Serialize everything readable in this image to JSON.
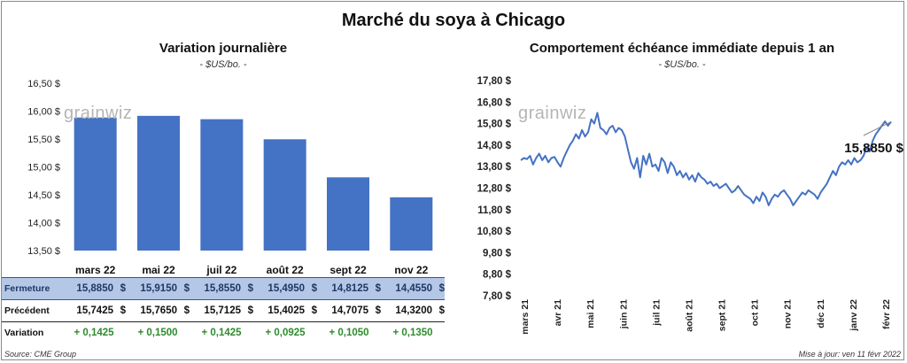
{
  "title": "Marché du soya à Chicago",
  "watermark": "grainwiz",
  "left_chart": {
    "subtitle": "Variation  journalière",
    "unit": "- $US/bo. -"
  },
  "right_chart": {
    "subtitle": "Comportement  échéance immédiate depuis 1 an",
    "unit": "- $US/bo. -",
    "last_value_label": "15,8850 $"
  },
  "table": {
    "rows": [
      {
        "label": "Fermeture",
        "values": [
          "15,8850",
          "15,9150",
          "15,8550",
          "15,4950",
          "14,8125",
          "14,4550"
        ],
        "currency": "$"
      },
      {
        "label": "Précédent",
        "values": [
          "15,7425",
          "15,7650",
          "15,7125",
          "15,4025",
          "14,7075",
          "14,3200"
        ],
        "currency": "$"
      },
      {
        "label": "Variation",
        "values": [
          "+ 0,1425",
          "+ 0,1500",
          "+ 0,1425",
          "+ 0,0925",
          "+ 0,1050",
          "+ 0,1350"
        ],
        "currency": ""
      }
    ]
  },
  "footer": {
    "source": "Source: CME Group",
    "updated": "Mise à jour: ven 11 févr 2022"
  },
  "colors": {
    "bar": "#4472c4",
    "line": "#4472c4",
    "gain": "#2e8b2e",
    "table_highlight": "#b4c7e7"
  },
  "chart_data": [
    {
      "type": "bar",
      "categories": [
        "mars 22",
        "mai 22",
        "juil 22",
        "août 22",
        "sept 22",
        "nov 22"
      ],
      "values": [
        15.885,
        15.915,
        15.855,
        15.495,
        14.8125,
        14.455
      ],
      "ylim": [
        13.5,
        16.5
      ],
      "yticks": [
        13.5,
        14.0,
        14.5,
        15.0,
        15.5,
        16.0,
        16.5
      ],
      "ytick_labels": [
        "13,50 $",
        "14,00 $",
        "14,50 $",
        "15,00 $",
        "15,50 $",
        "16,00 $",
        "16,50 $"
      ],
      "grid": false
    },
    {
      "type": "line",
      "x_labels": [
        "mars 21",
        "avr 21",
        "mai 21",
        "juin 21",
        "juil 21",
        "août 21",
        "sept 21",
        "oct 21",
        "nov 21",
        "déc 21",
        "janv 22",
        "févr 22"
      ],
      "ylim": [
        7.8,
        17.8
      ],
      "yticks": [
        7.8,
        8.8,
        9.8,
        10.8,
        11.8,
        12.8,
        13.8,
        14.8,
        15.8,
        16.8,
        17.8
      ],
      "ytick_labels": [
        "7,80 $",
        "8,80 $",
        "9,80 $",
        "10,80 $",
        "11,80 $",
        "12,80 $",
        "13,80 $",
        "14,80 $",
        "15,80 $",
        "16,80 $",
        "17,80 $"
      ],
      "series": [
        {
          "values": [
            14.1,
            14.2,
            14.15,
            14.3,
            13.9,
            14.2,
            14.4,
            14.1,
            14.3,
            14.0,
            14.2,
            14.25,
            14.0,
            13.8,
            14.2,
            14.5,
            14.8,
            15.0,
            15.3,
            15.1,
            15.5,
            15.2,
            15.4,
            16.0,
            15.8,
            16.3,
            15.6,
            15.5,
            15.3,
            15.6,
            15.7,
            15.4,
            15.6,
            15.5,
            15.2,
            14.6,
            14.0,
            13.7,
            14.2,
            13.3,
            14.3,
            13.9,
            14.4,
            13.8,
            13.9,
            13.6,
            14.2,
            14.0,
            13.5,
            14.0,
            13.8,
            13.4,
            13.6,
            13.3,
            13.5,
            13.2,
            13.4,
            13.1,
            13.5,
            13.3,
            13.2,
            13.0,
            13.1,
            12.9,
            13.0,
            12.8,
            12.9,
            13.0,
            12.8,
            12.6,
            12.7,
            12.9,
            12.7,
            12.5,
            12.4,
            12.3,
            12.1,
            12.4,
            12.2,
            12.6,
            12.4,
            12.0,
            12.3,
            12.5,
            12.4,
            12.6,
            12.7,
            12.5,
            12.3,
            12.0,
            12.2,
            12.4,
            12.6,
            12.5,
            12.7,
            12.6,
            12.5,
            12.3,
            12.6,
            12.8,
            13.0,
            13.3,
            13.6,
            13.4,
            13.8,
            14.0,
            13.9,
            14.1,
            13.9,
            14.2,
            14.0,
            14.1,
            14.3,
            14.7,
            14.5,
            15.0,
            15.3,
            15.5,
            15.7,
            15.9,
            15.7,
            15.885
          ]
        }
      ],
      "annotation": "15,8850 $",
      "grid": false
    }
  ]
}
